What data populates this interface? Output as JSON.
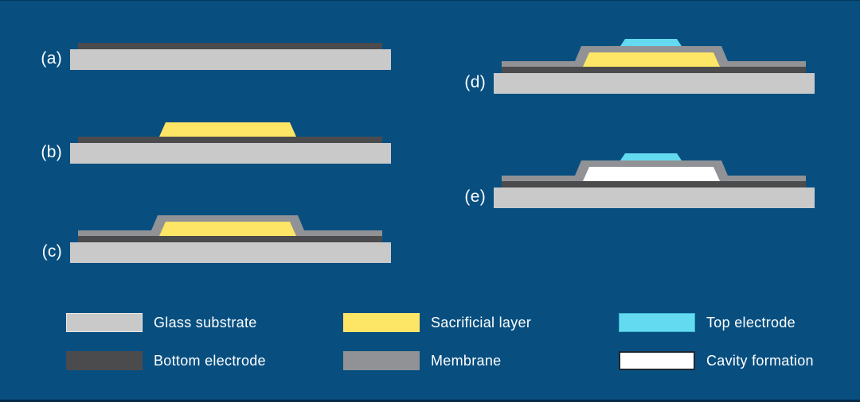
{
  "colors": {
    "background": "#084f80",
    "glass_substrate": "#c9c9c9",
    "bottom_electrode": "#4b4b4d",
    "sacrificial_layer": "#fde566",
    "membrane": "#909295",
    "top_electrode": "#63daf0",
    "cavity": "#ffffff",
    "text": "#ffffff"
  },
  "steps": [
    {
      "id": "a",
      "label": "(a)",
      "layers": [
        "glass_substrate",
        "bottom_electrode"
      ]
    },
    {
      "id": "b",
      "label": "(b)",
      "layers": [
        "glass_substrate",
        "bottom_electrode",
        "sacrificial_layer"
      ]
    },
    {
      "id": "c",
      "label": "(c)",
      "layers": [
        "glass_substrate",
        "bottom_electrode",
        "membrane",
        "sacrificial_layer"
      ]
    },
    {
      "id": "d",
      "label": "(d)",
      "layers": [
        "glass_substrate",
        "bottom_electrode",
        "membrane",
        "sacrificial_layer",
        "top_electrode"
      ]
    },
    {
      "id": "e",
      "label": "(e)",
      "layers": [
        "glass_substrate",
        "bottom_electrode",
        "membrane",
        "cavity",
        "top_electrode"
      ]
    }
  ],
  "legend": {
    "items": [
      {
        "key": "glass_substrate",
        "label": "Glass substrate"
      },
      {
        "key": "bottom_electrode",
        "label": "Bottom electrode"
      },
      {
        "key": "sacrificial_layer",
        "label": "Sacrificial layer"
      },
      {
        "key": "membrane",
        "label": "Membrane"
      },
      {
        "key": "top_electrode",
        "label": "Top electrode"
      },
      {
        "key": "cavity",
        "label": "Cavity formation"
      }
    ]
  }
}
